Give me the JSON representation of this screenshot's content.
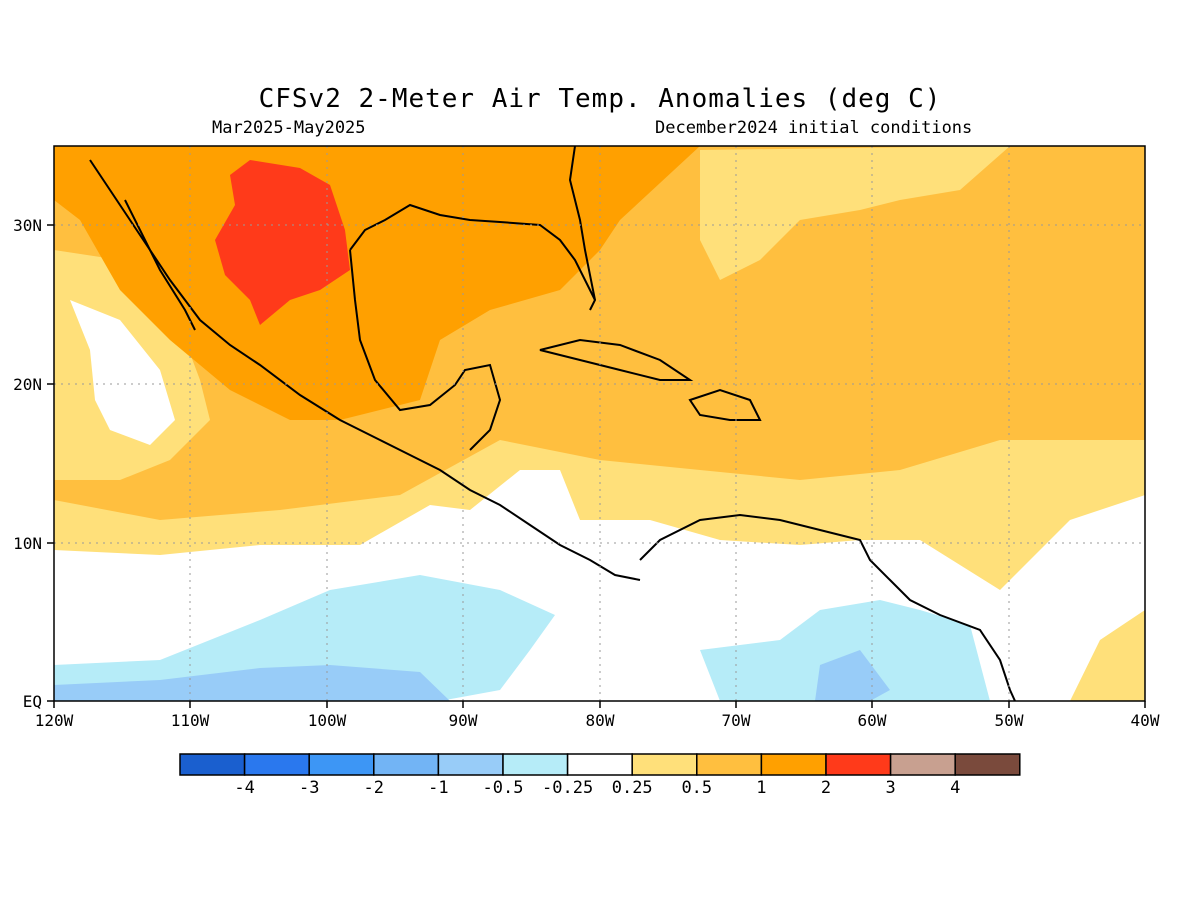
{
  "map": {
    "title": "CFSv2 2-Meter Air Temp. Anomalies (deg C)",
    "period": "Mar2025-May2025",
    "initial_conditions": "December2024 initial conditions",
    "lon_labels": [
      "120W",
      "110W",
      "100W",
      "90W",
      "80W",
      "70W",
      "60W",
      "50W",
      "40W"
    ],
    "lat_labels": [
      "EQ",
      "10N",
      "20N",
      "30N"
    ]
  },
  "legend": {
    "colors": [
      "#1a5fcf",
      "#2a78ee",
      "#3d96f5",
      "#72b4f5",
      "#98ccf8",
      "#b6ecf8",
      "#ffffff",
      "#ffe07a",
      "#ffbf3f",
      "#ffa000",
      "#ff3a1a",
      "#c8a090",
      "#7a4a3c"
    ],
    "labels": [
      "-4",
      "-3",
      "-2",
      "-1",
      "-0.5",
      "-0.25",
      "0.25",
      "0.5",
      "1",
      "2",
      "3",
      "4"
    ]
  },
  "colors": {
    "background_anomaly": "#ffbf3f",
    "warm_strong": "#ffa000",
    "hot": "#ff3a1a",
    "neutral": "#ffffff",
    "cool_light": "#b6ecf8",
    "cool": "#98ccf8"
  }
}
